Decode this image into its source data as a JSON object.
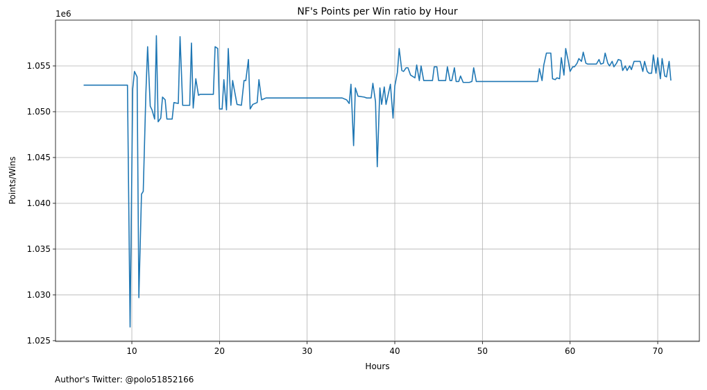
{
  "chart_data": {
    "type": "line",
    "title": "NF's Points per Win ratio by Hour",
    "x_label": "Hours",
    "y_label": "Points/Wins",
    "y_offset_label": "1e6",
    "footnote": "Author's Twitter: @polo51852166",
    "grid": true,
    "xlim": [
      1.29,
      74.75
    ],
    "ylim": [
      1024920,
      1060000
    ],
    "xticks": [
      10,
      20,
      30,
      40,
      50,
      60,
      70
    ],
    "yticks": [
      {
        "value": 1025000,
        "label": "1.025"
      },
      {
        "value": 1030000,
        "label": "1.030"
      },
      {
        "value": 1035000,
        "label": "1.035"
      },
      {
        "value": 1040000,
        "label": "1.040"
      },
      {
        "value": 1045000,
        "label": "1.045"
      },
      {
        "value": 1050000,
        "label": "1.050"
      },
      {
        "value": 1055000,
        "label": "1.055"
      }
    ],
    "series": [
      {
        "color": "#1f77b4",
        "x": [
          4.5,
          9.5,
          9.8,
          10.1,
          10.3,
          10.6,
          10.8,
          11.1,
          11.3,
          11.6,
          11.8,
          12.1,
          12.3,
          12.6,
          12.8,
          13.0,
          13.3,
          13.5,
          13.8,
          14.0,
          14.6,
          14.8,
          15.3,
          15.5,
          15.8,
          16.6,
          16.8,
          17.0,
          17.3,
          17.6,
          17.8,
          19.3,
          19.5,
          19.8,
          20.0,
          20.3,
          20.5,
          20.8,
          21.0,
          21.3,
          21.5,
          22.0,
          22.5,
          22.8,
          23.0,
          23.3,
          23.5,
          23.8,
          24.3,
          24.5,
          24.8,
          25.3,
          34.0,
          34.5,
          34.8,
          35.0,
          35.3,
          35.5,
          35.8,
          36.5,
          36.8,
          37.3,
          37.5,
          37.8,
          38.0,
          38.3,
          38.5,
          38.8,
          39.0,
          39.5,
          39.8,
          40.0,
          40.3,
          40.5,
          40.8,
          41.0,
          41.3,
          41.5,
          41.8,
          42.3,
          42.5,
          42.8,
          43.0,
          43.3,
          44.3,
          44.5,
          44.8,
          45.0,
          45.8,
          46.0,
          46.3,
          46.5,
          46.8,
          47.0,
          47.3,
          47.5,
          47.8,
          48.5,
          48.8,
          49.0,
          49.3,
          56.3,
          56.5,
          56.8,
          57.0,
          57.3,
          57.8,
          58.0,
          58.3,
          58.5,
          58.8,
          59.0,
          59.3,
          59.5,
          59.8,
          60.0,
          60.3,
          60.5,
          60.8,
          61.0,
          61.3,
          61.5,
          61.8,
          62.0,
          63.0,
          63.3,
          63.5,
          63.8,
          64.0,
          64.3,
          64.5,
          64.8,
          65.0,
          65.3,
          65.5,
          65.8,
          66.0,
          66.3,
          66.5,
          66.8,
          67.0,
          67.3,
          68.0,
          68.3,
          68.5,
          68.8,
          69.0,
          69.3,
          69.5,
          69.8,
          70.0,
          70.3,
          70.5,
          70.8,
          71.0,
          71.3,
          71.5
        ],
        "values": [
          1052900,
          1052900,
          1026500,
          1052500,
          1054400,
          1053800,
          1029700,
          1041000,
          1041300,
          1052000,
          1057100,
          1050600,
          1050200,
          1049200,
          1058300,
          1048900,
          1049300,
          1051600,
          1051300,
          1049200,
          1049200,
          1051000,
          1050900,
          1058200,
          1050700,
          1050700,
          1057500,
          1050400,
          1053600,
          1051800,
          1051900,
          1051900,
          1057100,
          1056900,
          1050300,
          1050300,
          1053500,
          1050200,
          1056900,
          1050700,
          1053400,
          1050800,
          1050700,
          1053400,
          1053400,
          1055700,
          1050300,
          1050800,
          1051000,
          1053500,
          1051300,
          1051500,
          1051500,
          1051300,
          1050900,
          1053000,
          1046300,
          1052600,
          1051700,
          1051600,
          1051500,
          1051500,
          1053100,
          1051100,
          1044000,
          1052600,
          1050800,
          1052700,
          1050800,
          1053000,
          1049300,
          1052800,
          1054300,
          1056900,
          1054500,
          1054400,
          1054800,
          1054800,
          1054000,
          1053700,
          1055100,
          1053400,
          1055000,
          1053400,
          1053400,
          1054900,
          1054900,
          1053400,
          1053400,
          1054900,
          1053400,
          1053400,
          1054800,
          1053300,
          1053300,
          1053900,
          1053200,
          1053200,
          1053300,
          1054800,
          1053300,
          1053300,
          1054700,
          1053400,
          1055100,
          1056400,
          1056400,
          1053600,
          1053500,
          1053700,
          1053600,
          1055900,
          1054000,
          1056900,
          1055500,
          1054400,
          1054900,
          1054900,
          1055300,
          1055800,
          1055500,
          1056500,
          1055300,
          1055200,
          1055200,
          1055700,
          1055200,
          1055300,
          1056400,
          1055300,
          1055000,
          1055500,
          1054900,
          1055300,
          1055700,
          1055600,
          1054500,
          1055000,
          1054500,
          1055000,
          1054600,
          1055500,
          1055500,
          1054400,
          1055500,
          1054400,
          1054200,
          1054200,
          1056200,
          1054200,
          1055900,
          1053600,
          1055800,
          1053900,
          1053800,
          1055500,
          1053400
        ]
      }
    ]
  }
}
